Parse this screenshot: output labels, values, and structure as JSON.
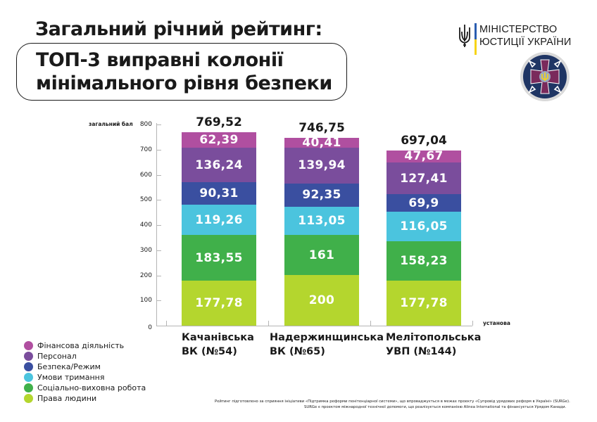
{
  "header": {
    "title": "Загальний річний рейтинг:",
    "subtitle_line1": "ТОП-3 виправні колонії",
    "subtitle_line2": "мінімального рівня безпеки"
  },
  "logos": {
    "ministry_line1": "МІНІСТЕРСТВО",
    "ministry_line2": "ЮСТИЦІЇ УКРАЇНИ",
    "emblem": "penitentiary-service-emblem"
  },
  "colors": {
    "finance": "#b04fa0",
    "personnel": "#7a4d9c",
    "security": "#3a4fa0",
    "conditions": "#4bc4de",
    "social": "#40b04a",
    "rights": "#b4d62e",
    "axis": "#b5b5b5",
    "flag_blue": "#2a5db0",
    "flag_yellow": "#f7d417"
  },
  "chart_data": {
    "type": "bar",
    "stacked": true,
    "title": "Загальний річний рейтинг: ТОП-3 виправні колонії мінімального рівня безпеки",
    "xlabel": "установа",
    "ylabel": "загальний бал",
    "ylim": [
      0,
      800
    ],
    "yticks": [
      0,
      100,
      200,
      300,
      400,
      500,
      600,
      700,
      800
    ],
    "grid": false,
    "legend_position": "bottom-left",
    "categories": [
      "Качанівська ВК (№54)",
      "Надержинщинська ВК (№65)",
      "Мелітопольська УВП (№144)"
    ],
    "totals": [
      "769,52",
      "746,75",
      "697,04"
    ],
    "series": [
      {
        "name": "Права людини",
        "values": [
          177.78,
          200,
          177.78
        ],
        "labels": [
          "177,78",
          "200",
          "177,78"
        ]
      },
      {
        "name": "Соціально-виховна робота",
        "values": [
          183.55,
          161,
          158.23
        ],
        "labels": [
          "183,55",
          "161",
          "158,23"
        ]
      },
      {
        "name": "Умови тримання",
        "values": [
          119.26,
          113.05,
          116.05
        ],
        "labels": [
          "119,26",
          "113,05",
          "116,05"
        ]
      },
      {
        "name": "Безпека/Режим",
        "values": [
          90.31,
          92.35,
          69.9
        ],
        "labels": [
          "90,31",
          "92,35",
          "69,9"
        ]
      },
      {
        "name": "Персонал",
        "values": [
          136.24,
          139.94,
          127.41
        ],
        "labels": [
          "136,24",
          "139,94",
          "127,41"
        ]
      },
      {
        "name": "Фінансова діяльність",
        "values": [
          62.39,
          40.41,
          47.67
        ],
        "labels": [
          "62,39",
          "40,41",
          "47,67"
        ]
      }
    ]
  },
  "categories_display": [
    {
      "line1": "Качанівська",
      "line2": "ВК (№54)"
    },
    {
      "line1": "Надержинщинська",
      "line2": "ВК (№65)"
    },
    {
      "line1": "Мелітопольська",
      "line2": "УВП (№144)"
    }
  ],
  "legend": [
    {
      "label": "Фінансова діяльність",
      "color": "#b04fa0"
    },
    {
      "label": "Персонал",
      "color": "#7a4d9c"
    },
    {
      "label": "Безпека/Режим",
      "color": "#3a4fa0"
    },
    {
      "label": "Умови тримання",
      "color": "#4bc4de"
    },
    {
      "label": "Соціально-виховна робота",
      "color": "#40b04a"
    },
    {
      "label": "Права людини",
      "color": "#b4d62e"
    }
  ],
  "footnote": {
    "line1": "Рейтинг підготовлено за сприяння ініціативи «Підтримка реформи пенітенціарної системи», що впроваджується в межах проекту «Супровід урядових реформ в Україні» (SURGe).",
    "line2": "SURGe є проектом міжнародної технічної допомоги, що реалізується компанією Alinea International та фінансується Урядом Канади."
  }
}
